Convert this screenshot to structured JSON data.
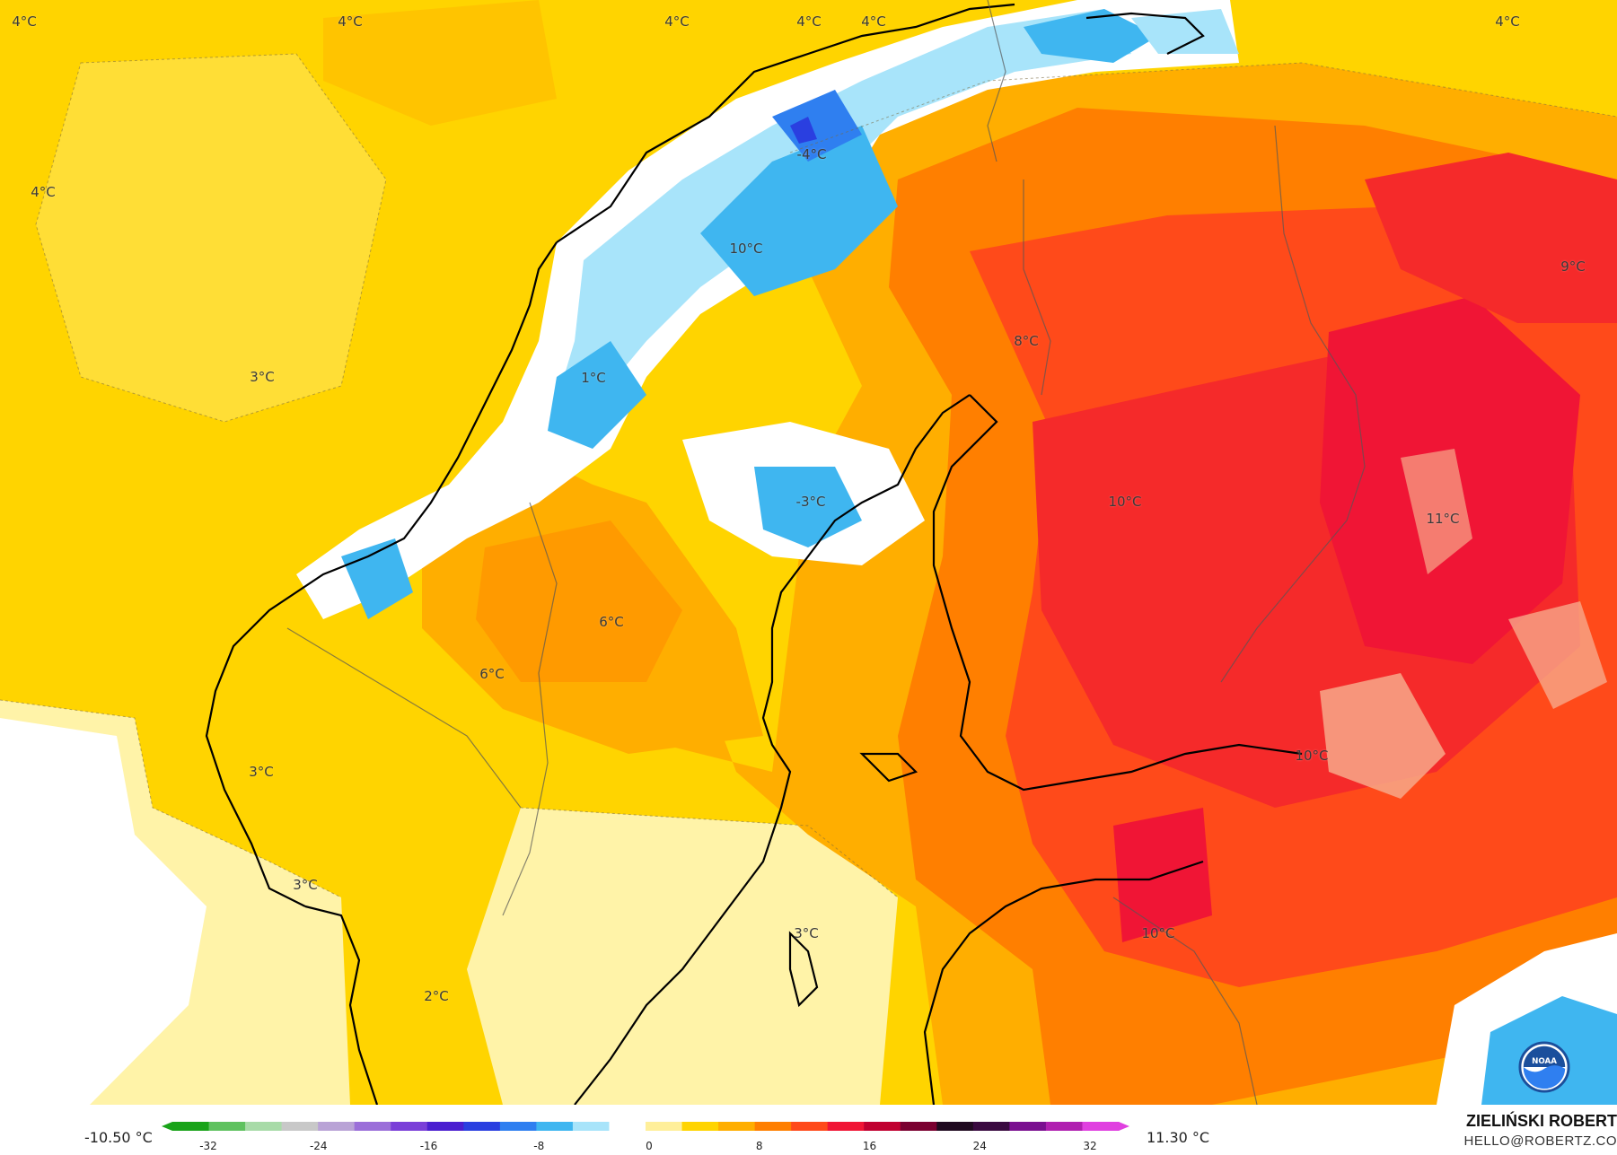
{
  "map": {
    "labels": [
      {
        "id": "l1",
        "text": "4°C"
      },
      {
        "id": "l2",
        "text": "4°C"
      },
      {
        "id": "l3",
        "text": "4°C"
      },
      {
        "id": "l4",
        "text": "4°C"
      },
      {
        "id": "l5",
        "text": "4°C"
      },
      {
        "id": "l6",
        "text": "4°C"
      },
      {
        "id": "l7",
        "text": "4°C"
      },
      {
        "id": "l8",
        "text": "-4°C"
      },
      {
        "id": "l9",
        "text": "10°C"
      },
      {
        "id": "l10",
        "text": "9°C"
      },
      {
        "id": "l11",
        "text": "8°C"
      },
      {
        "id": "l12",
        "text": "3°C"
      },
      {
        "id": "l13",
        "text": "1°C"
      },
      {
        "id": "l14",
        "text": "-3°C"
      },
      {
        "id": "l15",
        "text": "10°C"
      },
      {
        "id": "l16",
        "text": "11°C"
      },
      {
        "id": "l17",
        "text": "6°C"
      },
      {
        "id": "l18",
        "text": "6°C"
      },
      {
        "id": "l19",
        "text": "10°C"
      },
      {
        "id": "l20",
        "text": "3°C"
      },
      {
        "id": "l21",
        "text": "3°C"
      },
      {
        "id": "l22",
        "text": "3°C"
      },
      {
        "id": "l23",
        "text": "10°C"
      },
      {
        "id": "l24",
        "text": "2°C"
      }
    ]
  },
  "legend": {
    "min_label": "-10.50 °C",
    "max_label": "11.30 °C",
    "ticks": [
      "-32",
      "-24",
      "-16",
      "-8",
      "0",
      "8",
      "16",
      "24",
      "32"
    ],
    "colors": [
      "#19a319",
      "#5fc25f",
      "#a8dba8",
      "#c8c8c8",
      "#b9a3d6",
      "#9b6fd9",
      "#7a3fd8",
      "#4b1fd0",
      "#2a3fe0",
      "#2f7ff0",
      "#3fb6f0",
      "#a8e4fa",
      "#ffffff",
      "#ffef9a",
      "#ffd400",
      "#ffae00",
      "#ff7f00",
      "#ff4a1a",
      "#f01535",
      "#c00030",
      "#7a0030",
      "#200a20",
      "#3a0a40",
      "#7a1090",
      "#b020b0",
      "#e040e0"
    ]
  },
  "credit": {
    "name": "ZIELIŃSKI ROBERT",
    "email": "HELLO@ROBERTZ.CO"
  },
  "logo": {
    "icon": "noaa-logo",
    "text": "NOAA"
  }
}
